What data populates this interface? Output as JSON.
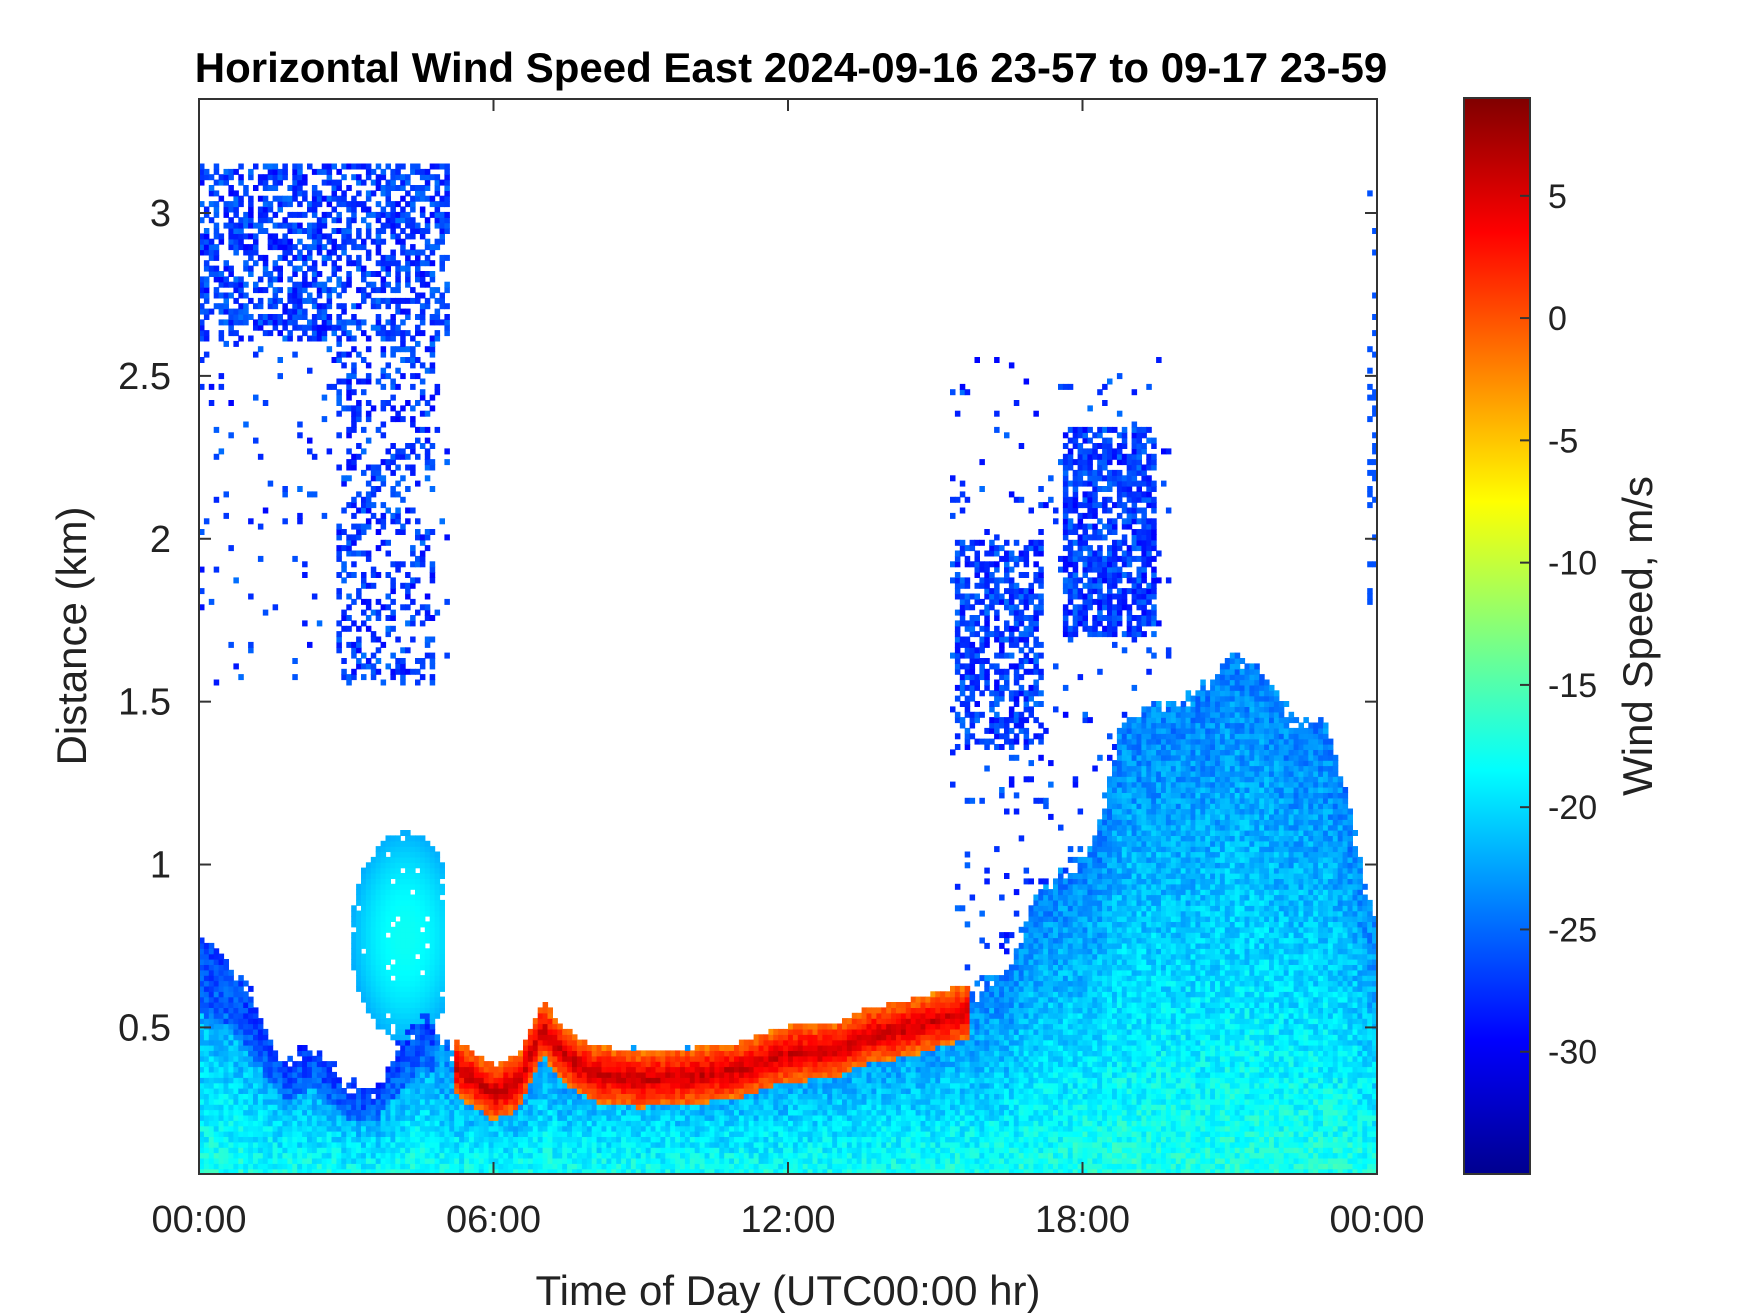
{
  "chart_data": {
    "type": "heatmap",
    "title": "Horizontal Wind Speed East 2024-09-16 23-57 to 09-17 23-59",
    "xlabel": "Time of Day (UTC00:00 hr)",
    "ylabel": "Distance (km)",
    "x_ticks": [
      "00:00",
      "06:00",
      "12:00",
      "18:00",
      "00:00"
    ],
    "x_range_hours": [
      0,
      24
    ],
    "y_ticks": [
      "0.5",
      "1",
      "1.5",
      "2",
      "2.5",
      "3"
    ],
    "ylim": [
      0.05,
      3.35
    ],
    "colorbar": {
      "label": "Wind Speed, m/s",
      "ticks": [
        "5",
        "0",
        "-5",
        "-10",
        "-15",
        "-20",
        "-25",
        "-30"
      ],
      "range": [
        -35,
        9
      ],
      "colormap": "jet"
    },
    "grid": false,
    "regions": [
      {
        "name": "upper-layer-night",
        "hours": [
          0,
          5.1
        ],
        "km": [
          1.6,
          3.15
        ],
        "wind_ms": -27
      },
      {
        "name": "boundary-layer-night",
        "hours": [
          0,
          5.2
        ],
        "km": [
          0.05,
          0.8
        ],
        "wind_ms": -21
      },
      {
        "name": "residual-bulge",
        "hours": [
          3,
          5
        ],
        "km": [
          0.5,
          1.15
        ],
        "wind_ms": -22
      },
      {
        "name": "low-level-jet-core",
        "hours": [
          5.2,
          15.7
        ],
        "km": [
          0.3,
          0.5
        ],
        "wind_ms": 5
      },
      {
        "name": "convective-mixed-layer",
        "hours": [
          15.3,
          24
        ],
        "km": [
          0.05,
          1.65
        ],
        "wind_ms": -19
      },
      {
        "name": "upper-cloud-returns",
        "hours": [
          15.3,
          19.7
        ],
        "km": [
          1.3,
          2.55
        ],
        "wind_ms": -27
      }
    ]
  }
}
